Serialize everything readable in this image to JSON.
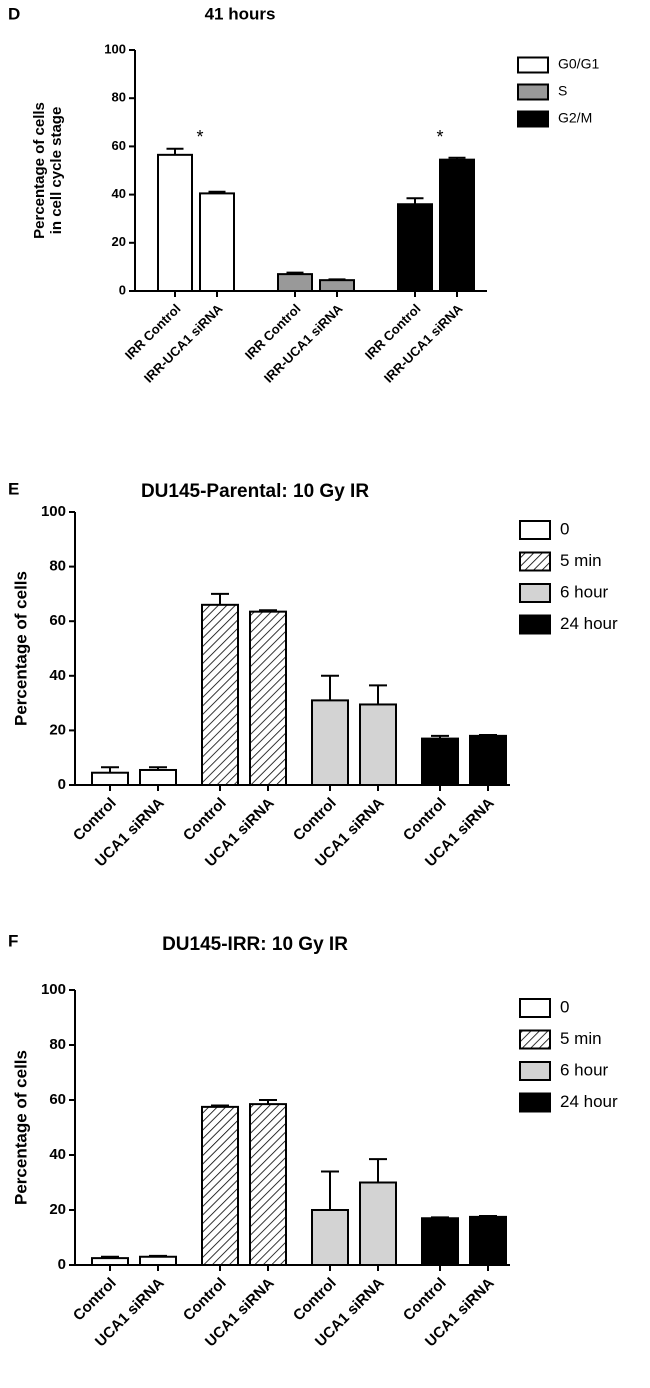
{
  "chart_data": [
    {
      "type": "bar",
      "panel": "D",
      "title": "41 hours",
      "ylabel": [
        "Percentage of cells",
        "in cell cycle stage"
      ],
      "categories": [
        "IRR Control",
        "IRR-UCA1 siRNA"
      ],
      "series": [
        {
          "name": "G0/G1",
          "color": "#ffffff",
          "values": [
            56.5,
            40.5
          ],
          "errors": [
            2.5,
            0.7
          ]
        },
        {
          "name": "S",
          "color": "#999999",
          "values": [
            7,
            4.5
          ],
          "errors": [
            0.6,
            0.3
          ]
        },
        {
          "name": "G2/M",
          "color": "#000000",
          "values": [
            36,
            54.5
          ],
          "errors": [
            2.5,
            0.8
          ]
        }
      ],
      "annotations": [
        "*",
        "*"
      ],
      "ylim": [
        0,
        100
      ],
      "yticks": [
        0,
        20,
        40,
        60,
        80,
        100
      ]
    },
    {
      "type": "bar",
      "panel": "E",
      "title": "DU145-Parental: 10 Gy IR",
      "ylabel": [
        "Percentage of cells"
      ],
      "categories": [
        "Control",
        "UCA1 siRNA"
      ],
      "series": [
        {
          "name": "0",
          "color": "#ffffff",
          "values": [
            4.5,
            5.5
          ],
          "errors": [
            2,
            1
          ]
        },
        {
          "name": "5 min",
          "color": "#ffffff",
          "hatch": true,
          "values": [
            66,
            63.5
          ],
          "errors": [
            4,
            0.5
          ]
        },
        {
          "name": "6 hour",
          "color": "#d3d3d3",
          "values": [
            31,
            29.5
          ],
          "errors": [
            9,
            7
          ]
        },
        {
          "name": "24 hour",
          "color": "#000000",
          "values": [
            17,
            18
          ],
          "errors": [
            1,
            0.3
          ]
        }
      ],
      "ylim": [
        0,
        100
      ],
      "yticks": [
        0,
        20,
        40,
        60,
        80,
        100
      ]
    },
    {
      "type": "bar",
      "panel": "F",
      "title": "DU145-IRR: 10 Gy IR",
      "ylabel": [
        "Percentage of cells"
      ],
      "categories": [
        "Control",
        "UCA1 siRNA"
      ],
      "series": [
        {
          "name": "0",
          "color": "#ffffff",
          "values": [
            2.5,
            3
          ],
          "errors": [
            0.5,
            0.3
          ]
        },
        {
          "name": "5 min",
          "color": "#ffffff",
          "hatch": true,
          "values": [
            57.5,
            58.5
          ],
          "errors": [
            0.5,
            1.5
          ]
        },
        {
          "name": "6 hour",
          "color": "#d3d3d3",
          "values": [
            20,
            30
          ],
          "errors": [
            14,
            8.5
          ]
        },
        {
          "name": "24 hour",
          "color": "#000000",
          "values": [
            17,
            17.5
          ],
          "errors": [
            0.3,
            0.3
          ]
        }
      ],
      "ylim": [
        0,
        100
      ],
      "yticks": [
        0,
        20,
        40,
        60,
        80,
        100
      ]
    }
  ]
}
